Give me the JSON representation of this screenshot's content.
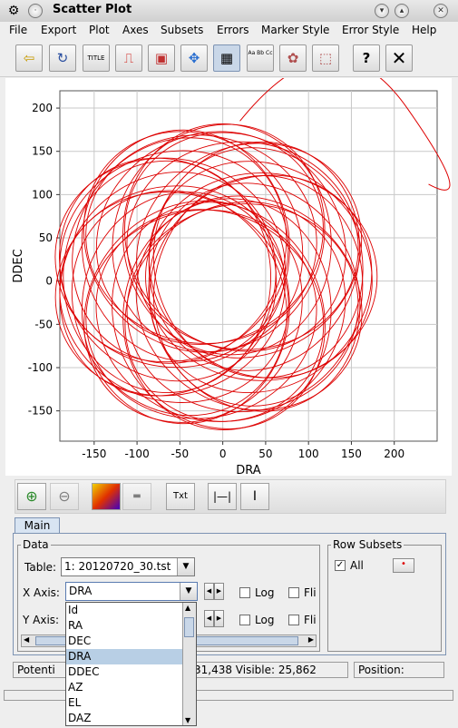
{
  "window": {
    "title": "Scatter Plot"
  },
  "menubar": [
    {
      "label": "File"
    },
    {
      "label": "Export"
    },
    {
      "label": "Plot"
    },
    {
      "label": "Axes"
    },
    {
      "label": "Subsets"
    },
    {
      "label": "Errors"
    },
    {
      "label": "Marker Style"
    },
    {
      "label": "Error Style"
    },
    {
      "label": "Help"
    }
  ],
  "toolbar": [
    {
      "icon": "import-icon"
    },
    {
      "icon": "replot-icon"
    },
    {
      "icon": "title-icon",
      "text": "TITLE"
    },
    {
      "icon": "pdf-icon"
    },
    {
      "icon": "save-image-icon"
    },
    {
      "icon": "navigate-icon"
    },
    {
      "icon": "grid-icon"
    },
    {
      "icon": "legend-text-icon",
      "text": "Aa Bb Cc"
    },
    {
      "icon": "blob-subset-icon"
    },
    {
      "icon": "region-subset-icon"
    },
    {
      "icon": "help-icon"
    },
    {
      "icon": "close-icon"
    }
  ],
  "chart_data": {
    "type": "scatter",
    "title": "",
    "xlabel": "DRA",
    "ylabel": "DDEC",
    "xlim": [
      -190,
      250
    ],
    "ylim": [
      -185,
      220
    ],
    "xticks": [
      -150,
      -100,
      -50,
      0,
      50,
      100,
      150,
      200
    ],
    "yticks": [
      -150,
      -100,
      -50,
      0,
      50,
      100,
      150,
      200
    ],
    "grid": true,
    "marker_color": "#dd0000",
    "series": [
      {
        "x": [
          0,
          37,
          69,
          93,
          117,
          133,
          126,
          86,
          43,
          0,
          -43,
          -86,
          -126,
          -148,
          -156,
          -144,
          -117,
          -69,
          -37,
          0
        ],
        "y": [
          185,
          178,
          168,
          150,
          128,
          98,
          60,
          20,
          -10,
          -25,
          -10,
          20,
          60,
          98,
          128,
          150,
          168,
          178,
          185,
          185
        ]
      }
    ],
    "annotation": {
      "x_start": 20,
      "y_start": 185,
      "x_end": 240,
      "y_end": 112
    }
  },
  "plot_toolbar": [
    {
      "icon": "add-dataset-icon"
    },
    {
      "icon": "remove-dataset-icon"
    },
    {
      "icon": "add-colour-icon"
    },
    {
      "icon": "remove-colour-icon"
    },
    {
      "icon": "add-text-icon",
      "text": "Txt"
    },
    {
      "icon": "x-range-icon"
    },
    {
      "icon": "y-range-icon"
    }
  ],
  "tabs": [
    {
      "label": "Main"
    }
  ],
  "data_panel": {
    "group_label": "Data",
    "table_label": "Table:",
    "table_value": "1: 20120720_30.tst",
    "x_axis_label": "X Axis:",
    "x_axis_value": "DRA",
    "y_axis_label": "Y Axis:",
    "log_label": "Log",
    "flip_label": "Fli"
  },
  "row_subsets": {
    "group_label": "Row Subsets",
    "all_label": "All",
    "all_checked": true
  },
  "dropdown": {
    "options": [
      "Id",
      "RA",
      "DEC",
      "DRA",
      "DDEC",
      "AZ",
      "EL",
      "DAZ"
    ],
    "selected": "DRA"
  },
  "status": {
    "potential": "Potenti",
    "counts": "31,438  Visible: 25,862",
    "position": "Position:"
  }
}
